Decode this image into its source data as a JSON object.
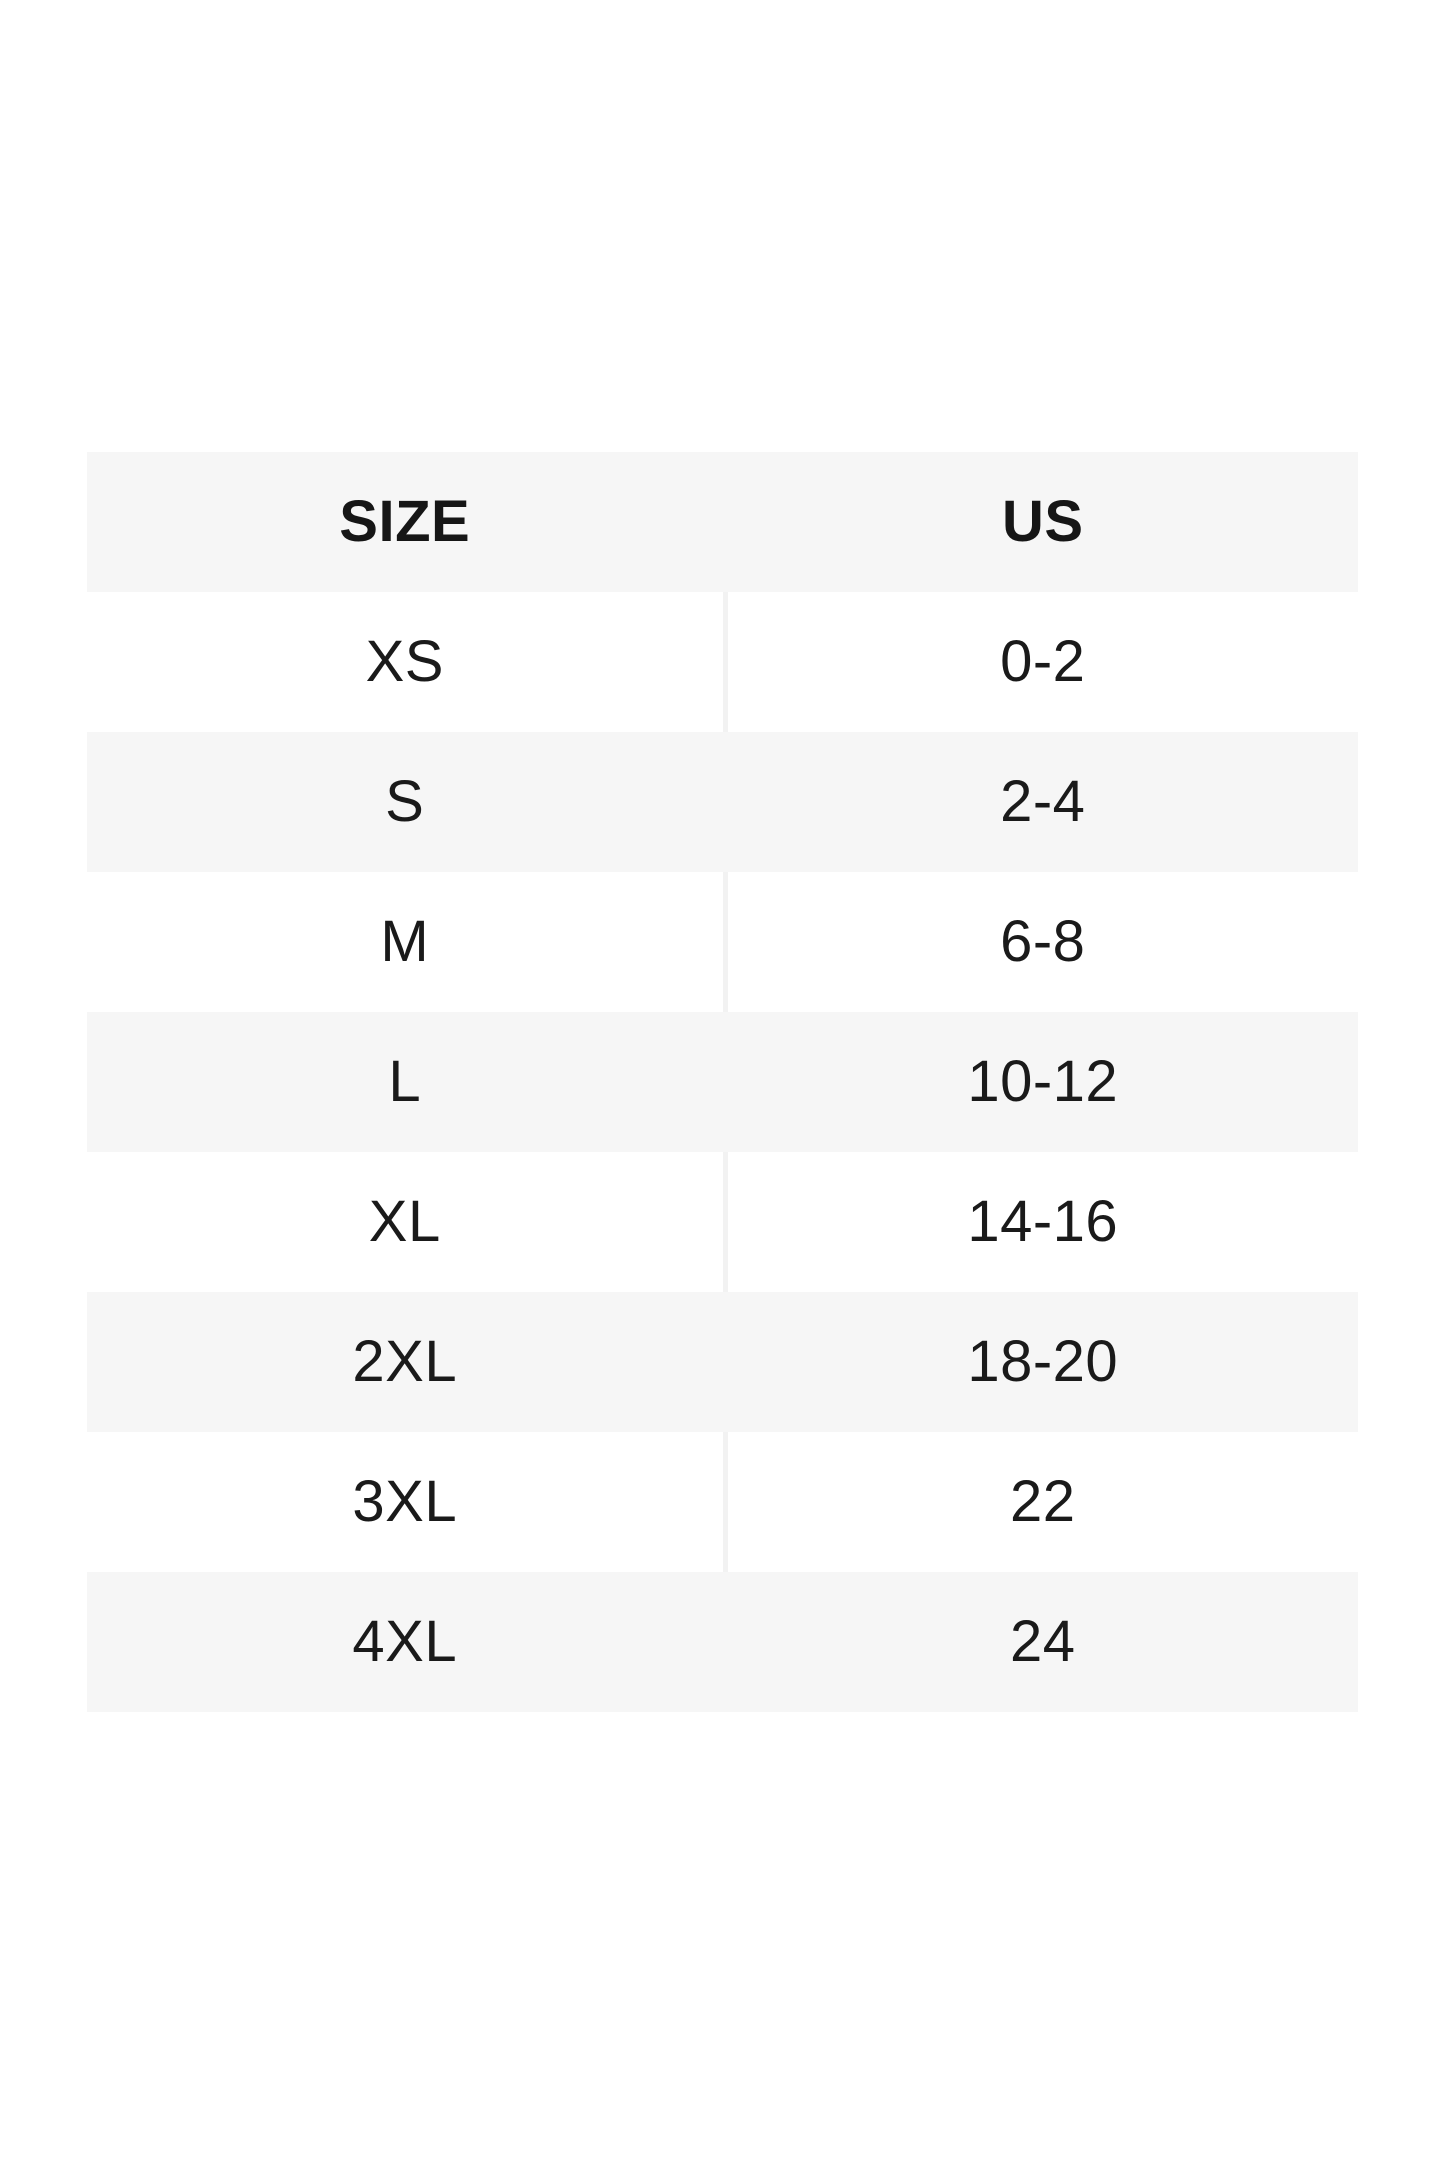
{
  "size_chart": {
    "columns": [
      {
        "label": "SIZE"
      },
      {
        "label": "US"
      }
    ],
    "rows": [
      {
        "size": "XS",
        "us": "0-2"
      },
      {
        "size": "S",
        "us": "2-4"
      },
      {
        "size": "M",
        "us": "6-8"
      },
      {
        "size": "L",
        "us": "10-12"
      },
      {
        "size": "XL",
        "us": "14-16"
      },
      {
        "size": "2XL",
        "us": "18-20"
      },
      {
        "size": "3XL",
        "us": "22"
      },
      {
        "size": "4XL",
        "us": "24"
      }
    ],
    "colors": {
      "stripe": "#f6f6f6",
      "row_plain": "#ffffff",
      "divider": "#f2f2f2",
      "text": "#1a1a1a",
      "page_background": "#ffffff"
    }
  }
}
